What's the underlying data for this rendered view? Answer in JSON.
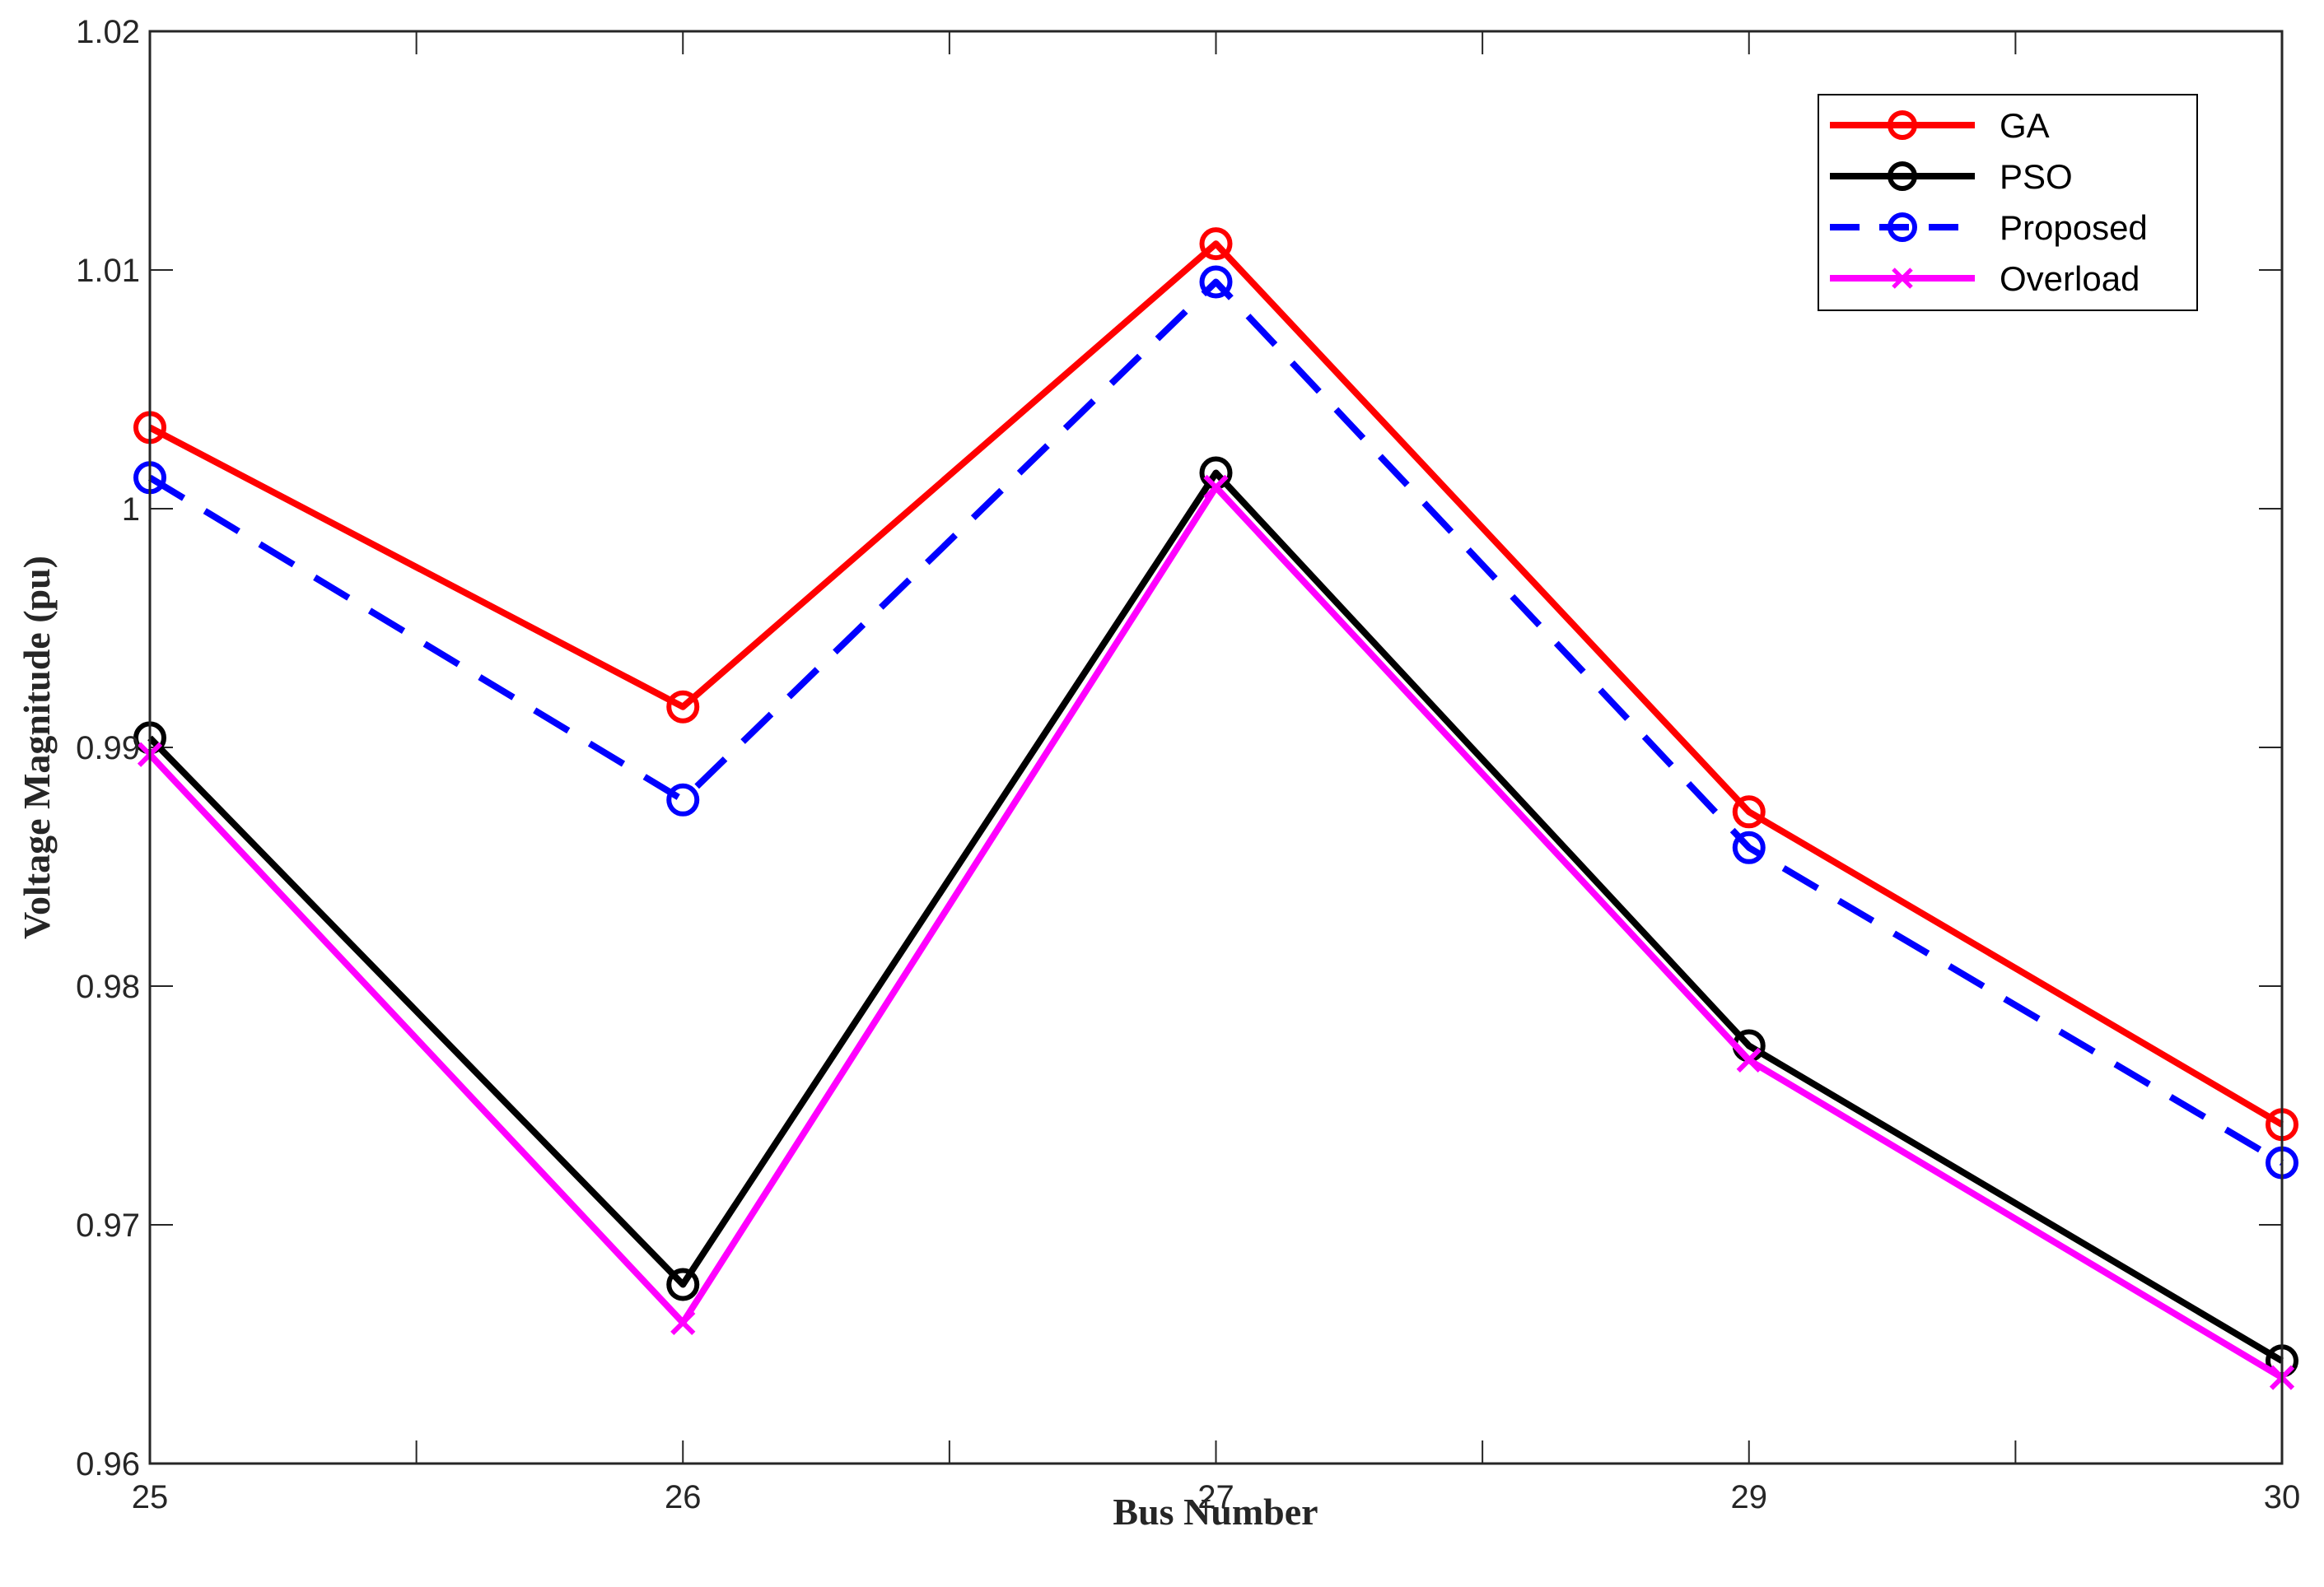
{
  "chart_data": {
    "type": "line",
    "title": "",
    "xlabel": "Bus Number",
    "ylabel": "Voltage Magnitude (pu)",
    "categories": [
      "25",
      "26",
      "27",
      "29",
      "30"
    ],
    "ylim": [
      0.96,
      1.02
    ],
    "yticks": [
      "0.96",
      "0.97",
      "0.98",
      "0.99",
      "1",
      "1.01",
      "1.02"
    ],
    "legend_position": "top-right",
    "series": [
      {
        "name": "GA",
        "color": "#ff0000",
        "style": "solid",
        "marker": "circle",
        "values": [
          1.0034,
          0.9917,
          1.0111,
          0.9873,
          0.9742
        ]
      },
      {
        "name": "PSO",
        "color": "#000000",
        "style": "solid",
        "marker": "circle",
        "values": [
          0.9904,
          0.9675,
          1.0015,
          0.9775,
          0.9643
        ]
      },
      {
        "name": "Proposed",
        "color": "#0000ff",
        "style": "dashed",
        "marker": "circle",
        "values": [
          1.0013,
          0.9878,
          1.0095,
          0.9858,
          0.9726
        ]
      },
      {
        "name": "Overload",
        "color": "#ff00ff",
        "style": "solid",
        "marker": "x",
        "values": [
          0.9897,
          0.9659,
          1.0009,
          0.9769,
          0.9636
        ]
      }
    ]
  }
}
